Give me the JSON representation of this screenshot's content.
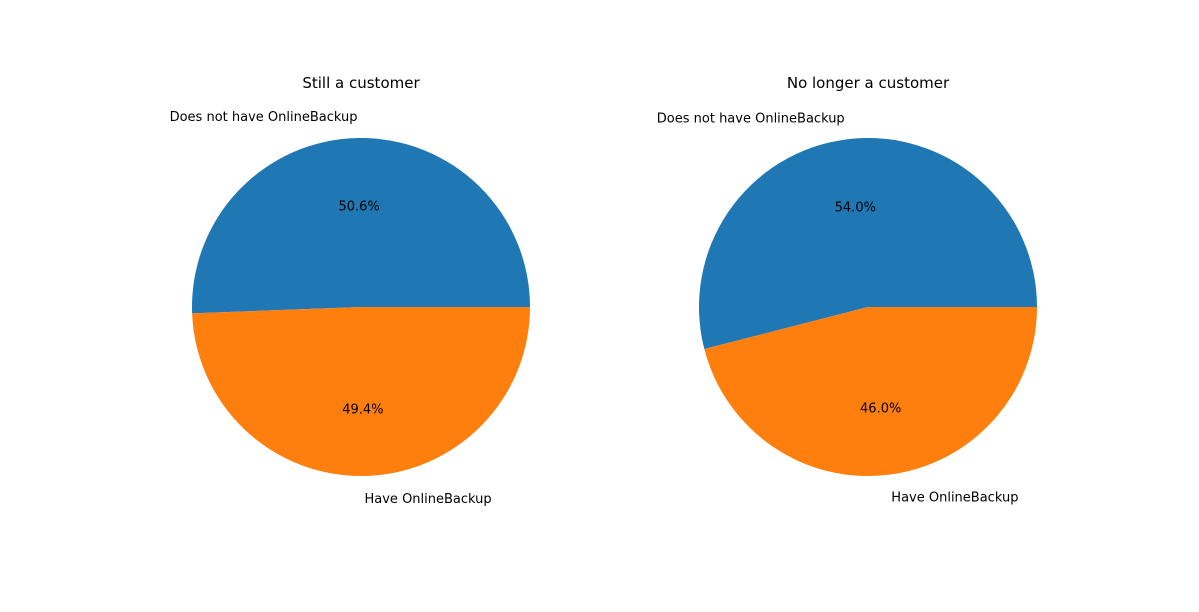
{
  "chart_data": [
    {
      "type": "pie",
      "title": "Still a customer",
      "labels": [
        "Does not have OnlineBackup",
        "Have OnlineBackup"
      ],
      "values": [
        50.6,
        49.4
      ],
      "autopct_labels": [
        "50.6%",
        "49.4%"
      ],
      "colors": [
        "#1f77b4",
        "#ff7f0e"
      ],
      "start_angle_deg": 0,
      "direction": "counterclockwise"
    },
    {
      "type": "pie",
      "title": "No longer a customer",
      "labels": [
        "Does not have OnlineBackup",
        "Have OnlineBackup"
      ],
      "values": [
        54.0,
        46.0
      ],
      "autopct_labels": [
        "54.0%",
        "46.0%"
      ],
      "colors": [
        "#1f77b4",
        "#ff7f0e"
      ],
      "start_angle_deg": 0,
      "direction": "counterclockwise"
    }
  ]
}
